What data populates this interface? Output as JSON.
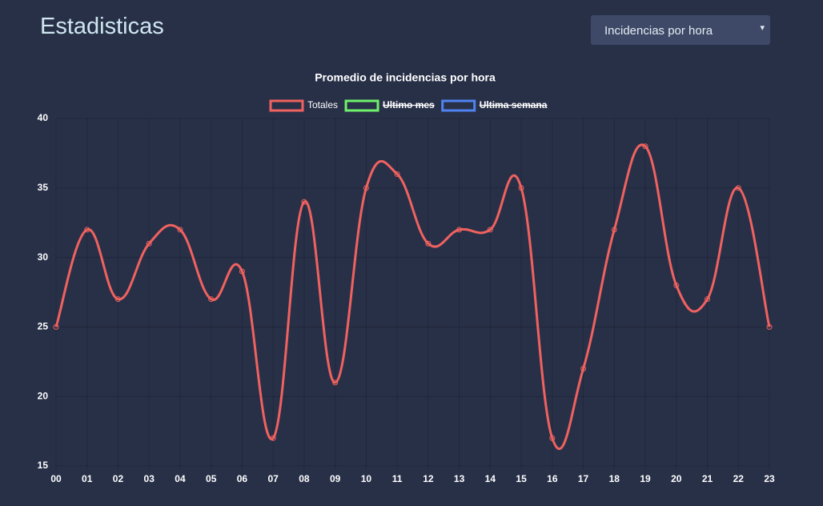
{
  "header": {
    "title": "Estadisticas",
    "select": "Incidencias por hora"
  },
  "chart_data": {
    "type": "line",
    "title": "Promedio de incidencias por hora",
    "categories": [
      "00",
      "01",
      "02",
      "03",
      "04",
      "05",
      "06",
      "07",
      "08",
      "09",
      "10",
      "11",
      "12",
      "13",
      "14",
      "15",
      "16",
      "17",
      "18",
      "19",
      "20",
      "21",
      "22",
      "23"
    ],
    "series": [
      {
        "name": "Totales",
        "color": "#f0625f",
        "values": [
          25,
          32,
          27,
          31,
          32,
          27,
          29,
          17,
          34,
          21,
          35,
          36,
          31,
          32,
          32,
          35,
          17,
          22,
          32,
          38,
          28,
          27,
          35,
          25
        ]
      }
    ],
    "hidden_series": [
      {
        "name": "Ultimo mes",
        "color": "#6ef06a"
      },
      {
        "name": "Ultima semana",
        "color": "#4f82f0"
      }
    ],
    "ylim": [
      15,
      40
    ],
    "yticks": [
      15,
      20,
      25,
      30,
      35,
      40
    ],
    "grid": true,
    "legend": "top"
  }
}
